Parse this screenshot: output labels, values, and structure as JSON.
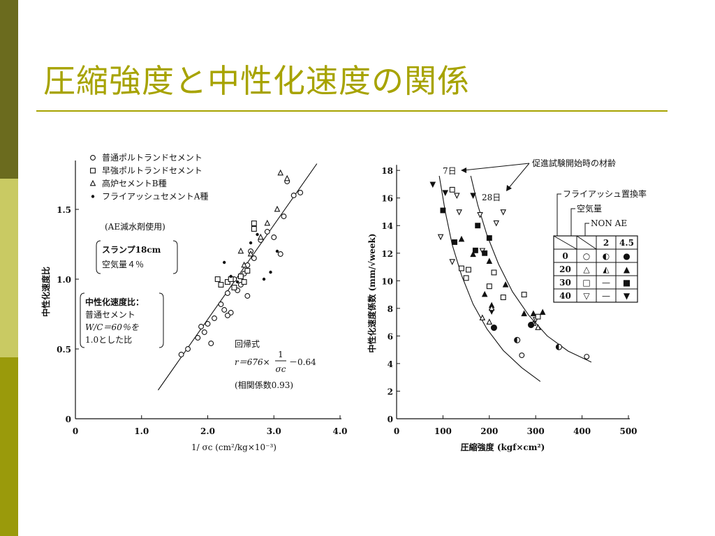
{
  "slide": {
    "title": "圧縮強度と中性化速度の関係",
    "colors": {
      "stripe_top": "#6b6b1e",
      "stripe_mid": "#c9ca63",
      "stripe_bot": "#9a9a0b",
      "title": "#a7a300",
      "rule": "#a7a300",
      "ink": "#111111"
    }
  },
  "chart_data": [
    {
      "type": "scatter",
      "xlabel": "1/ σc (cm²/kg×10⁻³)",
      "ylabel": "中性化速度比",
      "xlim": [
        0,
        4.0
      ],
      "ylim": [
        0,
        1.8
      ],
      "x_ticks": [
        "0",
        "1.0",
        "2.0",
        "3.0",
        "4.0"
      ],
      "y_ticks": [
        "0",
        "0.5",
        "1.0",
        "1.5"
      ],
      "legend": [
        {
          "marker": "circle-open",
          "label": "普通ポルトランドセメント"
        },
        {
          "marker": "square-open",
          "label": "早強ポルトランドセメント"
        },
        {
          "marker": "triangle-open",
          "label": "高炉セメントB種"
        },
        {
          "marker": "dot-filled",
          "label": "フライアッシュセメントA種"
        }
      ],
      "annotations": {
        "ae": "(AE減水剤使用)",
        "cond1": "スランプ18cm",
        "cond2": "空気量４％",
        "ratio1": "中性化速度比：",
        "ratio2": "普通セメント",
        "ratio3": "W/C＝60％を",
        "ratio4": "1.0とした比",
        "reg1": "回帰式",
        "reg_r": "r＝676×",
        "reg_num": "1",
        "reg_den": "σc",
        "reg_tail": "－0.64",
        "reg3": "(相関係数0.93)"
      },
      "regression": {
        "slope": 0.676,
        "intercept": -0.64,
        "x_range": [
          1.25,
          3.65
        ]
      },
      "series": [
        {
          "marker": "circle-open",
          "points": [
            [
              1.6,
              0.46
            ],
            [
              1.7,
              0.5
            ],
            [
              1.85,
              0.58
            ],
            [
              1.9,
              0.66
            ],
            [
              1.95,
              0.62
            ],
            [
              2.0,
              0.68
            ],
            [
              2.05,
              0.54
            ],
            [
              2.1,
              0.72
            ],
            [
              2.2,
              0.82
            ],
            [
              2.25,
              0.78
            ],
            [
              2.3,
              0.9
            ],
            [
              2.35,
              0.76
            ],
            [
              2.4,
              1.0
            ],
            [
              2.45,
              0.92
            ],
            [
              2.5,
              0.96
            ],
            [
              2.55,
              1.04
            ],
            [
              2.6,
              1.1
            ],
            [
              2.65,
              1.2
            ],
            [
              2.7,
              1.15
            ],
            [
              2.6,
              0.88
            ],
            [
              2.8,
              1.28
            ],
            [
              2.9,
              1.34
            ],
            [
              3.0,
              1.3
            ],
            [
              3.1,
              1.18
            ],
            [
              3.15,
              1.45
            ],
            [
              3.2,
              1.7
            ],
            [
              3.3,
              1.6
            ],
            [
              3.4,
              1.62
            ],
            [
              2.3,
              0.74
            ]
          ]
        },
        {
          "marker": "square-open",
          "points": [
            [
              2.15,
              1.0
            ],
            [
              2.2,
              0.96
            ],
            [
              2.3,
              0.98
            ],
            [
              2.35,
              1.0
            ],
            [
              2.4,
              0.94
            ],
            [
              2.5,
              1.02
            ],
            [
              2.55,
              0.98
            ],
            [
              2.6,
              1.06
            ],
            [
              2.7,
              1.36
            ],
            [
              2.7,
              1.4
            ]
          ]
        },
        {
          "marker": "triangle-open",
          "points": [
            [
              2.55,
              1.1
            ],
            [
              2.65,
              1.18
            ],
            [
              2.8,
              1.3
            ],
            [
              2.9,
              1.4
            ],
            [
              3.05,
              1.5
            ],
            [
              3.1,
              1.76
            ],
            [
              3.2,
              1.72
            ],
            [
              2.5,
              1.2
            ]
          ]
        },
        {
          "marker": "dot-filled",
          "points": [
            [
              2.25,
              1.12
            ],
            [
              2.35,
              1.02
            ],
            [
              2.45,
              0.98
            ],
            [
              2.65,
              1.26
            ],
            [
              2.75,
              1.32
            ],
            [
              2.85,
              1.0
            ],
            [
              2.95,
              1.05
            ],
            [
              3.05,
              1.2
            ]
          ]
        }
      ]
    },
    {
      "type": "scatter",
      "xlabel": "圧縮強度 (kgf×cm²)",
      "ylabel": "中性化速度係数 (mm/√week)",
      "xlim": [
        0,
        500
      ],
      "ylim": [
        0,
        18
      ],
      "x_ticks": [
        "0",
        "100",
        "200",
        "300",
        "400",
        "500"
      ],
      "y_ticks": [
        "0",
        "2",
        "4",
        "6",
        "8",
        "10",
        "12",
        "14",
        "16",
        "18"
      ],
      "annotations": {
        "age_title": "促進試験開始時の材齢",
        "age_7": "7日",
        "age_28": "28日",
        "fa_title": "フライアッシュ置換率",
        "air_title": "空気量",
        "non_ae": "NON AE"
      },
      "legend_table": {
        "col_heads": [
          "2",
          "4.5"
        ],
        "rows": [
          {
            "head": "0",
            "cells": [
              "○",
              "◐",
              "●"
            ]
          },
          {
            "head": "20",
            "cells": [
              "△",
              "◭",
              "▲"
            ]
          },
          {
            "head": "30",
            "cells": [
              "□",
              "—",
              "■"
            ]
          },
          {
            "head": "40",
            "cells": [
              "▽",
              "—",
              "▼"
            ]
          }
        ]
      },
      "curves": [
        {
          "name": "7日",
          "points": [
            [
              92,
              17.6
            ],
            [
              105,
              15.0
            ],
            [
              120,
              12.6
            ],
            [
              140,
              10.4
            ],
            [
              165,
              8.3
            ],
            [
              195,
              6.5
            ],
            [
              230,
              4.95
            ],
            [
              270,
              3.7
            ],
            [
              310,
              2.7
            ]
          ]
        },
        {
          "name": "28日",
          "points": [
            [
              160,
              17.6
            ],
            [
              175,
              15.5
            ],
            [
              195,
              13.3
            ],
            [
              220,
              11.2
            ],
            [
              250,
              9.2
            ],
            [
              285,
              7.5
            ],
            [
              325,
              6.0
            ],
            [
              370,
              4.9
            ],
            [
              420,
              4.1
            ]
          ]
        }
      ],
      "series": [
        {
          "marker": "tri-down-filled",
          "points": [
            [
              78,
              17.0
            ],
            [
              105,
              16.4
            ],
            [
              165,
              16.2
            ],
            [
              205,
              7.8
            ]
          ]
        },
        {
          "marker": "tri-down-open",
          "points": [
            [
              130,
              16.2
            ],
            [
              135,
              15.0
            ],
            [
              95,
              13.2
            ],
            [
              180,
              14.8
            ],
            [
              185,
              12.2
            ],
            [
              215,
              14.2
            ],
            [
              120,
              11.4
            ],
            [
              300,
              7.2
            ],
            [
              230,
              15.0
            ]
          ]
        },
        {
          "marker": "square-filled",
          "points": [
            [
              100,
              15.1
            ],
            [
              125,
              12.8
            ],
            [
              175,
              14.0
            ],
            [
              170,
              12.2
            ],
            [
              190,
              12.0
            ],
            [
              200,
              13.1
            ]
          ]
        },
        {
          "marker": "square-open",
          "points": [
            [
              120,
              16.6
            ],
            [
              140,
              10.9
            ],
            [
              150,
              10.2
            ],
            [
              155,
              10.8
            ],
            [
              200,
              9.6
            ],
            [
              210,
              10.6
            ],
            [
              230,
              8.8
            ],
            [
              275,
              9.0
            ],
            [
              305,
              7.4
            ]
          ]
        },
        {
          "marker": "tri-up-filled",
          "points": [
            [
              140,
              13.0
            ],
            [
              165,
              11.9
            ],
            [
              190,
              9.0
            ],
            [
              200,
              11.4
            ],
            [
              205,
              8.2
            ],
            [
              235,
              9.7
            ],
            [
              275,
              7.6
            ],
            [
              295,
              7.6
            ],
            [
              315,
              7.7
            ]
          ]
        },
        {
          "marker": "tri-up-open",
          "points": [
            [
              185,
              7.3
            ],
            [
              200,
              7.0
            ],
            [
              205,
              8.0
            ],
            [
              305,
              6.6
            ],
            [
              295,
              6.9
            ]
          ]
        },
        {
          "marker": "circle-filled",
          "points": [
            [
              210,
              6.6
            ],
            [
              290,
              6.8
            ]
          ]
        },
        {
          "marker": "circle-open",
          "points": [
            [
              270,
              4.6
            ],
            [
              410,
              4.5
            ]
          ]
        },
        {
          "marker": "circle-half",
          "points": [
            [
              260,
              5.7
            ],
            [
              350,
              5.2
            ]
          ]
        }
      ]
    }
  ]
}
